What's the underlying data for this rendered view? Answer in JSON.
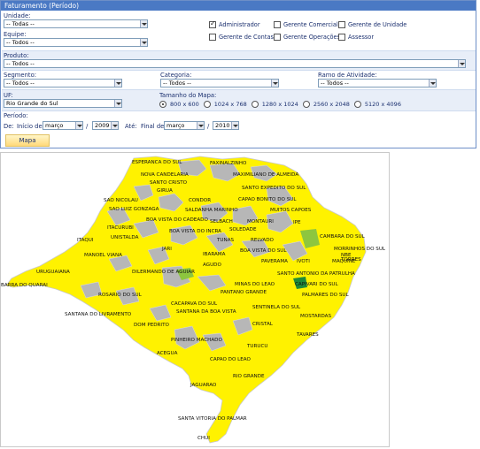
{
  "panel": {
    "title": "Faturamento (Período)"
  },
  "filters": {
    "unidade": {
      "label": "Unidade:",
      "value": "-- Todas --"
    },
    "equipe": {
      "label": "Equipe:",
      "value": "-- Todos --"
    },
    "produto": {
      "label": "Produto:",
      "value": "-- Todos --"
    },
    "segmento": {
      "label": "Segmento:",
      "value": "-- Todos --"
    },
    "categoria": {
      "label": "Categoria:",
      "value": "-- Todos --"
    },
    "ramo": {
      "label": "Ramo de Atividade:",
      "value": "-- Todos --"
    },
    "uf": {
      "label": "UF:",
      "value": "Rio Grande do Sul"
    }
  },
  "roles": [
    {
      "label": "Administrador",
      "checked": true
    },
    {
      "label": "Gerente Comercial",
      "checked": false
    },
    {
      "label": "Gerente de Unidade",
      "checked": false
    },
    {
      "label": "Gerente de Contas",
      "checked": false
    },
    {
      "label": "Gerente Operações",
      "checked": false
    },
    {
      "label": "Assessor",
      "checked": false
    }
  ],
  "map_size": {
    "label": "Tamanho do Mapa:",
    "options": [
      "800 x 600",
      "1024 x 768",
      "1280 x 1024",
      "2560 x 2048",
      "5120 x 4096"
    ],
    "selected": "800 x 600"
  },
  "period": {
    "label": "Período:",
    "de_label": "De:",
    "inicio_label": "Início de",
    "inicio_month": "março",
    "inicio_year": "2009",
    "ate_label": "Até:",
    "final_label": "Final de",
    "final_month": "março",
    "final_year": "2010",
    "sep1": "/",
    "sep2": "/"
  },
  "button": {
    "label": "Mapa"
  },
  "map": {
    "colors": {
      "sea": "#ffffff",
      "region": "#fff200",
      "gray": "#b7b7b7",
      "green": "#8dc63f",
      "dark_green": "#1f8a3a",
      "border": "#c8c8c8"
    },
    "cities": [
      "ESPERANCA DO SUL",
      "FAXINALZINHO",
      "NOVA CANDELARIA",
      "MAXIMILIANO DE ALMEIDA",
      "SANTO CRISTO",
      "SANTO EXPEDITO DO SUL",
      "GIRUA",
      "CAPAO BONITO DO SUL",
      "CONDOR",
      "SAO NICOLAU",
      "MUITOS CAPOES",
      "SAO LUIZ GONZAGA",
      "SALDANHA MARINHO",
      "BOA VISTA DO CADEADO",
      "SELBACH",
      "MONTAURI",
      "ITACURUBI",
      "SOLEDADE",
      "IPE",
      "UNISTALDA",
      "BOA VISTA DO INCRA",
      "ITAQUI",
      "TUNAS",
      "RELVADO",
      "CAMBARA DO SUL",
      "MANOEL VIANA",
      "JARI",
      "BOA VISTA DO SUL",
      "MORRINHOS DO SUL",
      "TORRES",
      "IBARAMA",
      "PAVERAMA",
      "IVOTI",
      "MAQUINE",
      "AGUDO",
      "DILERMANDO DE AGUIAR",
      "URUGUAIANA",
      "SANTO ANTONIO DA PATRULHA",
      "NBE",
      "MINAS DO LEAO",
      "BARRA DO QUARAI",
      "CAPIVARI DO SUL",
      "ROSARIO DO SUL",
      "PANTANO GRANDE",
      "PALMARES DO SUL",
      "CACAPAVA DO SUL",
      "SENTINELA DO SUL",
      "SANTANA DO LIVRAMENTO",
      "SANTANA DA BOA VISTA",
      "MOSTARDAS",
      "DOM PEDRITO",
      "CRISTAL",
      "TAVARES",
      "PINHEIRO MACHADO",
      "TURUCU",
      "ACEGUA",
      "CAPAO DO LEAO",
      "RIO GRANDE",
      "JAGUARAO",
      "SANTA VITORIA DO PALMAR",
      "CHUI"
    ]
  }
}
